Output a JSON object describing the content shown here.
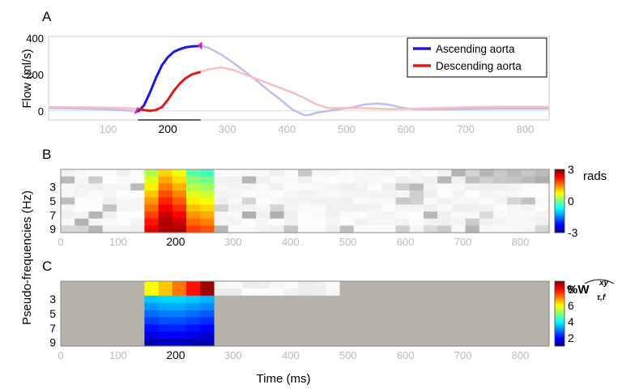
{
  "xlabel": "Time (ms)",
  "shared_ylabel": "Pseudo-frequencies (Hz)",
  "chart_data": [
    {
      "type": "line",
      "panel": "A",
      "ylabel": "Flow (ml/s)",
      "xlim": [
        0,
        840
      ],
      "ylim": [
        -50,
        410
      ],
      "yticks": [
        "0",
        "200",
        "400"
      ],
      "xticks": [
        "100",
        "200",
        "300",
        "400",
        "500",
        "600",
        "700",
        "800"
      ],
      "highlight_window": [
        150,
        255
      ],
      "legend_position": "top-right",
      "series": [
        {
          "name": "Ascending aorta",
          "color": "#1a1adc",
          "x": [
            0,
            50,
            100,
            130,
            150,
            160,
            170,
            180,
            190,
            200,
            210,
            220,
            230,
            240,
            250,
            255,
            270,
            290,
            310,
            330,
            350,
            370,
            390,
            410,
            430,
            440,
            450,
            470,
            490,
            510,
            530,
            550,
            570,
            590,
            610,
            640,
            700,
            760,
            800,
            840
          ],
          "y": [
            15,
            12,
            8,
            3,
            -5,
            30,
            100,
            180,
            250,
            295,
            325,
            340,
            350,
            355,
            357,
            360,
            345,
            310,
            265,
            215,
            165,
            110,
            60,
            5,
            -25,
            -20,
            -10,
            0,
            10,
            20,
            35,
            40,
            35,
            20,
            10,
            8,
            10,
            12,
            12,
            12
          ]
        },
        {
          "name": "Descending aorta",
          "color": "#e01818",
          "x": [
            0,
            50,
            100,
            130,
            150,
            160,
            170,
            180,
            190,
            200,
            210,
            220,
            230,
            240,
            250,
            255,
            270,
            290,
            310,
            330,
            350,
            370,
            390,
            410,
            430,
            450,
            470,
            490,
            510,
            530,
            550,
            570,
            590,
            610,
            650,
            700,
            760,
            800,
            840
          ],
          "y": [
            20,
            20,
            18,
            15,
            10,
            5,
            0,
            5,
            20,
            60,
            110,
            150,
            180,
            200,
            210,
            215,
            230,
            240,
            225,
            200,
            175,
            150,
            125,
            100,
            70,
            35,
            15,
            15,
            15,
            15,
            12,
            10,
            10,
            12,
            15,
            20,
            22,
            22,
            22
          ]
        }
      ]
    },
    {
      "type": "heatmap",
      "panel": "B",
      "xlim": [
        0,
        850
      ],
      "yticks": [
        "3",
        "5",
        "7",
        "9"
      ],
      "xticks": [
        "0",
        "100",
        "200",
        "300",
        "400",
        "500",
        "600",
        "700",
        "800"
      ],
      "colorbar": {
        "label": "rads",
        "ticks": [
          "3",
          "0",
          "-3"
        ],
        "range": [
          -3,
          3
        ]
      },
      "highlight_window": [
        145,
        260
      ]
    },
    {
      "type": "heatmap",
      "panel": "C",
      "xlim": [
        0,
        850
      ],
      "yticks": [
        "3",
        "5",
        "7",
        "9"
      ],
      "xticks": [
        "0",
        "100",
        "200",
        "300",
        "400",
        "500",
        "600",
        "700",
        "800"
      ],
      "colorbar": {
        "label": "%W",
        "label_super": "xy",
        "label_sub": "τ,f",
        "ticks": [
          "8",
          "6",
          "4",
          "2"
        ],
        "range": [
          1,
          9
        ]
      },
      "highlight_window": [
        145,
        260
      ]
    }
  ]
}
